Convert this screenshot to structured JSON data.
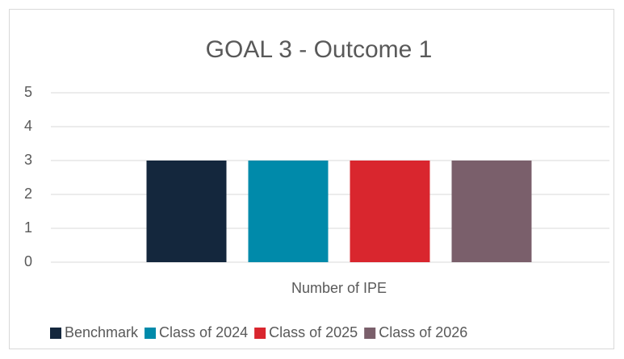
{
  "chart_data": {
    "type": "bar",
    "title": "GOAL 3 - Outcome 1",
    "categories": [
      "Number of IPE"
    ],
    "series": [
      {
        "name": "Benchmark",
        "color": "#14273d",
        "values": [
          3
        ]
      },
      {
        "name": "Class of 2024",
        "color": "#008aaa",
        "values": [
          3
        ]
      },
      {
        "name": "Class of 2025",
        "color": "#d9262e",
        "values": [
          3
        ]
      },
      {
        "name": "Class of 2026",
        "color": "#7a5f6b",
        "values": [
          3
        ]
      }
    ],
    "ylim": [
      0,
      5
    ],
    "yticks": [
      0,
      1,
      2,
      3,
      4,
      5
    ],
    "grid": true,
    "legend": "bottom"
  }
}
